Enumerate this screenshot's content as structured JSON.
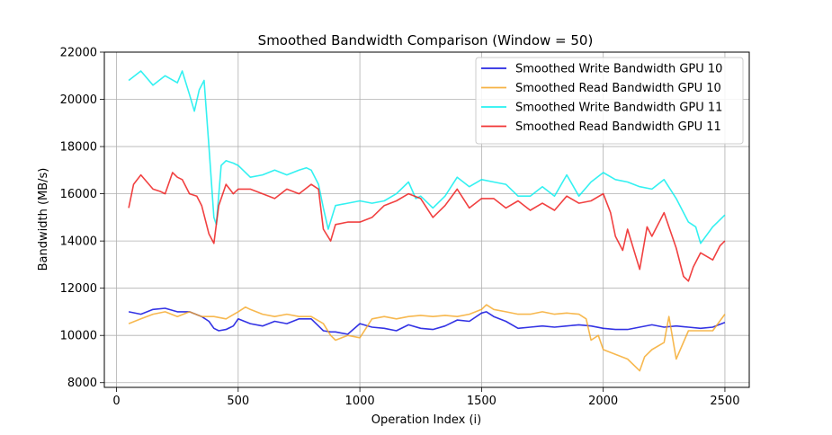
{
  "chart_data": {
    "type": "line",
    "title": "Smoothed Bandwidth Comparison (Window = 50)",
    "xlabel": "Operation Index (i)",
    "ylabel": "Bandwidth (MB/s)",
    "xlim": [
      -50,
      2600
    ],
    "ylim": [
      7800,
      22000
    ],
    "xticks": [
      0,
      500,
      1000,
      1500,
      2000,
      2500
    ],
    "yticks": [
      8000,
      10000,
      12000,
      14000,
      16000,
      18000,
      20000,
      22000
    ],
    "grid": true,
    "legend_position": "top-right",
    "series": [
      {
        "name": "Smoothed Write Bandwidth GPU 10",
        "color": "#0000dd",
        "x": [
          50,
          100,
          150,
          200,
          250,
          300,
          350,
          380,
          400,
          420,
          450,
          480,
          500,
          550,
          600,
          650,
          700,
          750,
          800,
          830,
          850,
          880,
          900,
          950,
          1000,
          1050,
          1100,
          1150,
          1200,
          1250,
          1300,
          1350,
          1400,
          1450,
          1500,
          1520,
          1550,
          1600,
          1650,
          1700,
          1750,
          1800,
          1850,
          1900,
          1950,
          2000,
          2050,
          2100,
          2150,
          2200,
          2250,
          2300,
          2350,
          2400,
          2450,
          2500
        ],
        "values": [
          11000,
          10900,
          11100,
          11150,
          11000,
          11000,
          10800,
          10600,
          10300,
          10200,
          10250,
          10400,
          10700,
          10500,
          10400,
          10600,
          10500,
          10700,
          10700,
          10400,
          10200,
          10150,
          10150,
          10050,
          10500,
          10350,
          10300,
          10200,
          10450,
          10300,
          10250,
          10400,
          10650,
          10600,
          10950,
          11000,
          10800,
          10600,
          10300,
          10350,
          10400,
          10350,
          10400,
          10450,
          10400,
          10300,
          10250,
          10250,
          10350,
          10450,
          10350,
          10400,
          10350,
          10300,
          10350,
          10550
        ]
      },
      {
        "name": "Smoothed Read Bandwidth GPU 10",
        "color": "#f5a623",
        "x": [
          50,
          100,
          150,
          200,
          250,
          300,
          350,
          400,
          450,
          500,
          530,
          550,
          600,
          650,
          700,
          750,
          800,
          850,
          880,
          900,
          950,
          1000,
          1050,
          1100,
          1150,
          1200,
          1250,
          1300,
          1350,
          1400,
          1450,
          1500,
          1520,
          1550,
          1600,
          1650,
          1700,
          1750,
          1800,
          1850,
          1900,
          1930,
          1950,
          1980,
          2000,
          2050,
          2100,
          2150,
          2170,
          2200,
          2250,
          2270,
          2300,
          2350,
          2400,
          2450,
          2500
        ],
        "values": [
          10500,
          10700,
          10900,
          11000,
          10800,
          11000,
          10800,
          10800,
          10700,
          11000,
          11200,
          11100,
          10900,
          10800,
          10900,
          10800,
          10800,
          10500,
          10000,
          9800,
          10000,
          9900,
          10700,
          10800,
          10700,
          10800,
          10850,
          10800,
          10850,
          10800,
          10900,
          11100,
          11300,
          11100,
          11000,
          10900,
          10900,
          11000,
          10900,
          10950,
          10900,
          10700,
          9800,
          10000,
          9400,
          9200,
          9000,
          8500,
          9100,
          9400,
          9700,
          10800,
          9000,
          10200,
          10200,
          10200,
          10900
        ]
      },
      {
        "name": "Smoothed Write Bandwidth GPU 11",
        "color": "#00eeee",
        "x": [
          50,
          100,
          150,
          200,
          250,
          270,
          300,
          320,
          340,
          360,
          380,
          400,
          410,
          430,
          450,
          480,
          500,
          550,
          600,
          650,
          700,
          750,
          780,
          800,
          830,
          850,
          870,
          900,
          950,
          1000,
          1050,
          1100,
          1150,
          1200,
          1230,
          1250,
          1300,
          1350,
          1400,
          1450,
          1500,
          1550,
          1600,
          1650,
          1700,
          1750,
          1800,
          1850,
          1900,
          1950,
          2000,
          2050,
          2100,
          2150,
          2200,
          2250,
          2300,
          2350,
          2380,
          2400,
          2450,
          2500
        ],
        "values": [
          20800,
          21200,
          20600,
          21000,
          20700,
          21200,
          20200,
          19500,
          20400,
          20800,
          18000,
          15000,
          14700,
          17200,
          17400,
          17300,
          17200,
          16700,
          16800,
          17000,
          16800,
          17000,
          17100,
          17000,
          16400,
          15400,
          14500,
          15500,
          15600,
          15700,
          15600,
          15700,
          16000,
          16500,
          15800,
          15900,
          15400,
          15900,
          16700,
          16300,
          16600,
          16500,
          16400,
          15900,
          15900,
          16300,
          15900,
          16800,
          15900,
          16500,
          16900,
          16600,
          16500,
          16300,
          16200,
          16600,
          15800,
          14800,
          14600,
          13900,
          14600,
          15100
        ]
      },
      {
        "name": "Smoothed Read Bandwidth GPU 11",
        "color": "#ee1111",
        "x": [
          50,
          70,
          100,
          150,
          180,
          200,
          230,
          250,
          270,
          300,
          330,
          350,
          380,
          400,
          420,
          450,
          480,
          500,
          550,
          600,
          650,
          700,
          750,
          800,
          830,
          850,
          880,
          900,
          950,
          1000,
          1050,
          1100,
          1150,
          1200,
          1250,
          1300,
          1350,
          1400,
          1450,
          1500,
          1550,
          1600,
          1650,
          1700,
          1750,
          1800,
          1850,
          1900,
          1950,
          2000,
          2030,
          2050,
          2080,
          2100,
          2150,
          2180,
          2200,
          2250,
          2280,
          2300,
          2330,
          2350,
          2370,
          2400,
          2450,
          2480,
          2500
        ],
        "values": [
          15400,
          16400,
          16800,
          16200,
          16100,
          16000,
          16900,
          16700,
          16600,
          16000,
          15900,
          15500,
          14300,
          13900,
          15500,
          16400,
          16000,
          16200,
          16200,
          16000,
          15800,
          16200,
          16000,
          16400,
          16200,
          14500,
          14000,
          14700,
          14800,
          14800,
          15000,
          15500,
          15700,
          16000,
          15800,
          15000,
          15500,
          16200,
          15400,
          15800,
          15800,
          15400,
          15700,
          15300,
          15600,
          15300,
          15900,
          15600,
          15700,
          16000,
          15200,
          14200,
          13600,
          14500,
          12800,
          14600,
          14200,
          15200,
          14300,
          13700,
          12500,
          12300,
          12900,
          13500,
          13200,
          13800,
          14000
        ]
      }
    ]
  }
}
